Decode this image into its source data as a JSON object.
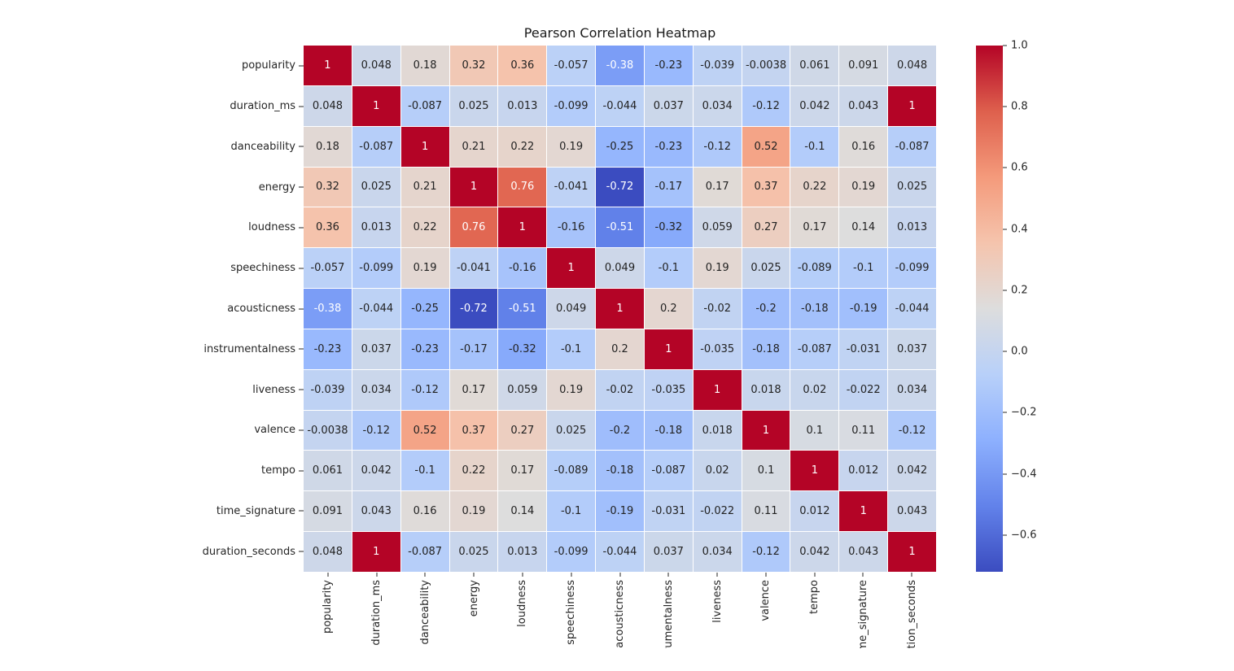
{
  "title": "Pearson Correlation Heatmap",
  "chart_data": {
    "type": "heatmap",
    "title": "Pearson Correlation Heatmap",
    "categories": [
      "popularity",
      "duration_ms",
      "danceability",
      "energy",
      "loudness",
      "speechiness",
      "acousticness",
      "instrumentalness",
      "liveness",
      "valence",
      "tempo",
      "time_signature",
      "duration_seconds"
    ],
    "matrix": [
      [
        "1",
        "0.048",
        "0.18",
        "0.32",
        "0.36",
        "-0.057",
        "-0.38",
        "-0.23",
        "-0.039",
        "-0.0038",
        "0.061",
        "0.091",
        "0.048"
      ],
      [
        "0.048",
        "1",
        "-0.087",
        "0.025",
        "0.013",
        "-0.099",
        "-0.044",
        "0.037",
        "0.034",
        "-0.12",
        "0.042",
        "0.043",
        "1"
      ],
      [
        "0.18",
        "-0.087",
        "1",
        "0.21",
        "0.22",
        "0.19",
        "-0.25",
        "-0.23",
        "-0.12",
        "0.52",
        "-0.1",
        "0.16",
        "-0.087"
      ],
      [
        "0.32",
        "0.025",
        "0.21",
        "1",
        "0.76",
        "-0.041",
        "-0.72",
        "-0.17",
        "0.17",
        "0.37",
        "0.22",
        "0.19",
        "0.025"
      ],
      [
        "0.36",
        "0.013",
        "0.22",
        "0.76",
        "1",
        "-0.16",
        "-0.51",
        "-0.32",
        "0.059",
        "0.27",
        "0.17",
        "0.14",
        "0.013"
      ],
      [
        "-0.057",
        "-0.099",
        "0.19",
        "-0.041",
        "-0.16",
        "1",
        "0.049",
        "-0.1",
        "0.19",
        "0.025",
        "-0.089",
        "-0.1",
        "-0.099"
      ],
      [
        "-0.38",
        "-0.044",
        "-0.25",
        "-0.72",
        "-0.51",
        "0.049",
        "1",
        "0.2",
        "-0.02",
        "-0.2",
        "-0.18",
        "-0.19",
        "-0.044"
      ],
      [
        "-0.23",
        "0.037",
        "-0.23",
        "-0.17",
        "-0.32",
        "-0.1",
        "0.2",
        "1",
        "-0.035",
        "-0.18",
        "-0.087",
        "-0.031",
        "0.037"
      ],
      [
        "-0.039",
        "0.034",
        "-0.12",
        "0.17",
        "0.059",
        "0.19",
        "-0.02",
        "-0.035",
        "1",
        "0.018",
        "0.02",
        "-0.022",
        "0.034"
      ],
      [
        "-0.0038",
        "-0.12",
        "0.52",
        "0.37",
        "0.27",
        "0.025",
        "-0.2",
        "-0.18",
        "0.018",
        "1",
        "0.1",
        "0.11",
        "-0.12"
      ],
      [
        "0.061",
        "0.042",
        "-0.1",
        "0.22",
        "0.17",
        "-0.089",
        "-0.18",
        "-0.087",
        "0.02",
        "0.1",
        "1",
        "0.012",
        "0.042"
      ],
      [
        "0.091",
        "0.043",
        "0.16",
        "0.19",
        "0.14",
        "-0.1",
        "-0.19",
        "-0.031",
        "-0.022",
        "0.11",
        "0.012",
        "1",
        "0.043"
      ],
      [
        "0.048",
        "1",
        "-0.087",
        "0.025",
        "0.013",
        "-0.099",
        "-0.044",
        "0.037",
        "0.034",
        "-0.12",
        "0.042",
        "0.043",
        "1"
      ]
    ],
    "vmin": -0.72,
    "vmax": 1.0,
    "colormap": {
      "name": "coolwarm",
      "anchors": [
        {
          "t": 0.0,
          "hex": "#3b4cc0"
        },
        {
          "t": 0.125,
          "hex": "#6282ea"
        },
        {
          "t": 0.25,
          "hex": "#8db0fe"
        },
        {
          "t": 0.375,
          "hex": "#b8d0f9"
        },
        {
          "t": 0.5,
          "hex": "#dddddd"
        },
        {
          "t": 0.625,
          "hex": "#f5c4ad"
        },
        {
          "t": 0.75,
          "hex": "#f49a7b"
        },
        {
          "t": 0.875,
          "hex": "#de604d"
        },
        {
          "t": 1.0,
          "hex": "#b40426"
        }
      ]
    },
    "colorbar": {
      "position": "right",
      "ticks": [
        {
          "value": 1.0,
          "label": "1.0"
        },
        {
          "value": 0.8,
          "label": "0.8"
        },
        {
          "value": 0.6,
          "label": "0.6"
        },
        {
          "value": 0.4,
          "label": "0.4"
        },
        {
          "value": 0.2,
          "label": "0.2"
        },
        {
          "value": 0.0,
          "label": "0.0"
        },
        {
          "value": -0.2,
          "label": "−0.2"
        },
        {
          "value": -0.4,
          "label": "−0.4"
        },
        {
          "value": -0.6,
          "label": "−0.6"
        }
      ]
    },
    "annotation_text_colors": {
      "light": "#ffffff",
      "dark": "#222222"
    },
    "grid_line_color": "#ffffff",
    "background": "#ffffff"
  }
}
